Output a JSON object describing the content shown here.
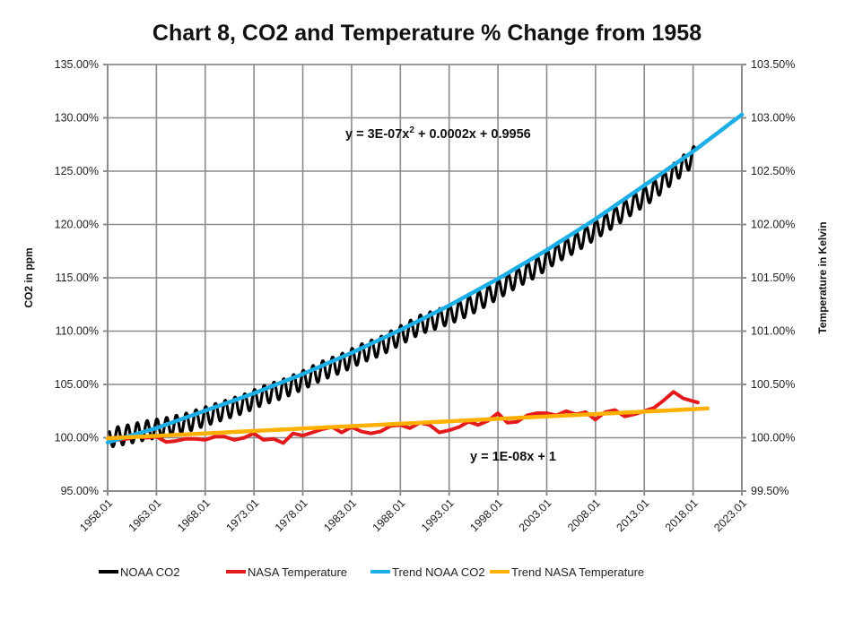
{
  "chart_data": {
    "type": "line",
    "title": "Chart 8, CO2 and Temperature % Change from 1958",
    "xlabel": "",
    "ylabel": "CO2 in ppm",
    "y2label": "Temperature in Kelvin",
    "x_range": [
      1958.01,
      2023.01
    ],
    "x_ticks": [
      "1958.01",
      "1963.01",
      "1968.01",
      "1973.01",
      "1978.01",
      "1983.01",
      "1988.01",
      "1993.01",
      "1998.01",
      "2003.01",
      "2008.01",
      "2013.01",
      "2018.01",
      "2023.01"
    ],
    "ylim": [
      0.95,
      1.35
    ],
    "y_ticks": [
      "95.00%",
      "100.00%",
      "105.00%",
      "110.00%",
      "115.00%",
      "120.00%",
      "125.00%",
      "130.00%",
      "135.00%"
    ],
    "y2lim": [
      0.995,
      1.035
    ],
    "y2_ticks": [
      "99.50%",
      "100.00%",
      "100.50%",
      "101.00%",
      "101.50%",
      "102.00%",
      "102.50%",
      "103.00%",
      "103.50%"
    ],
    "grid": true,
    "legend_position": "bottom",
    "series": [
      {
        "name": "NOAA CO2",
        "axis": "left",
        "color": "#000000",
        "seasonal_amplitude": 0.009,
        "x": [
          1958.2,
          1960,
          1962,
          1964,
          1966,
          1968,
          1970,
          1972,
          1974,
          1976,
          1978,
          1980,
          1982,
          1984,
          1986,
          1988,
          1990,
          1992,
          1994,
          1996,
          1998,
          2000,
          2002,
          2004,
          2006,
          2008,
          2010,
          2012,
          2014,
          2016,
          2018.2
        ],
        "values": [
          1.0,
          1.003,
          1.007,
          1.01,
          1.014,
          1.02,
          1.026,
          1.032,
          1.04,
          1.046,
          1.054,
          1.063,
          1.07,
          1.079,
          1.086,
          1.096,
          1.106,
          1.112,
          1.119,
          1.128,
          1.139,
          1.15,
          1.16,
          1.173,
          1.183,
          1.195,
          1.207,
          1.22,
          1.232,
          1.248,
          1.265
        ]
      },
      {
        "name": "NASA Temperature",
        "axis": "right",
        "color": "#e31a1c",
        "x": [
          1958.2,
          1959,
          1960,
          1961,
          1962,
          1963,
          1964,
          1965,
          1966,
          1967,
          1968,
          1969,
          1970,
          1971,
          1972,
          1973,
          1974,
          1975,
          1976,
          1977,
          1978,
          1979,
          1980,
          1981,
          1982,
          1983,
          1984,
          1985,
          1986,
          1987,
          1988,
          1989,
          1990,
          1991,
          1992,
          1993,
          1994,
          1995,
          1996,
          1997,
          1998,
          1999,
          2000,
          2001,
          2002,
          2003,
          2004,
          2005,
          2006,
          2007,
          2008,
          2009,
          2010,
          2011,
          2012,
          2013,
          2014,
          2015,
          2016,
          2017,
          2018.5
        ],
        "values": [
          1.0,
          0.9998,
          0.9999,
          1.0001,
          1.0,
          1.0001,
          0.9996,
          0.9997,
          0.9999,
          0.9999,
          0.9998,
          1.0001,
          1.0001,
          0.9998,
          1.0,
          1.0004,
          0.9998,
          0.9999,
          0.9995,
          1.0004,
          1.0002,
          1.0005,
          1.0008,
          1.001,
          1.0005,
          1.001,
          1.0006,
          1.0004,
          1.0006,
          1.0011,
          1.0012,
          1.0009,
          1.0014,
          1.0012,
          1.0005,
          1.0007,
          1.001,
          1.0015,
          1.0012,
          1.0016,
          1.0023,
          1.0014,
          1.0015,
          1.0021,
          1.0023,
          1.0023,
          1.0021,
          1.0025,
          1.0022,
          1.0024,
          1.0017,
          1.0024,
          1.0026,
          1.002,
          1.0022,
          1.0025,
          1.0028,
          1.0035,
          1.0043,
          1.0037,
          1.0033
        ]
      },
      {
        "name": "Trend NOAA CO2",
        "axis": "left",
        "color": "#1eaee6",
        "equation": "y = 3E-07x² + 0.0002x + 0.9956",
        "x": [
          1958.01,
          1963.01,
          1968.01,
          1973.01,
          1978.01,
          1983.01,
          1988.01,
          1993.01,
          1998.01,
          2003.01,
          2008.01,
          2013.01,
          2018.01,
          2023.01
        ],
        "values": [
          0.9956,
          1.0091,
          1.0254,
          1.0417,
          1.0597,
          1.0796,
          1.1011,
          1.124,
          1.149,
          1.176,
          1.205,
          1.2366,
          1.2685,
          1.303
        ]
      },
      {
        "name": "Trend NASA Temperature",
        "axis": "right",
        "color": "#ffb000",
        "equation": "y = 1E-08x + 1",
        "x": [
          1958.01,
          2019.5
        ],
        "values": [
          0.99995,
          1.00275
        ]
      }
    ],
    "annotations": [
      {
        "text_main": "y = 3E-07x",
        "sup": "2",
        "text_rest": " + 0.0002x + 0.9956",
        "near_series": "Trend NOAA CO2"
      },
      {
        "text": "y = 1E-08x + 1",
        "near_series": "Trend NASA Temperature"
      }
    ]
  }
}
